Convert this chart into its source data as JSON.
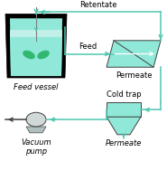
{
  "bg_color": "#ffffff",
  "teal_color": "#70d8c8",
  "teal_line": "#50c8b0",
  "outline_color": "#404040",
  "vessel_fill": "#90e8d8",
  "vessel_top_fill": "#c0f0e8",
  "membrane_fill": "#90e8d8",
  "coldtrap_fill": "#90e8d8",
  "pump_fill": "#d0d8d8",
  "pump_base_fill": "#b0c0c0",
  "labels": {
    "feed_vessel": "Feed vessel",
    "feed": "Feed",
    "retentate": "Retentate",
    "permeate_top": "Permeate",
    "permeate_bottom": "Permeate",
    "cold_trap": "Cold trap",
    "vacuum_pump": "Vacuum\npump"
  },
  "font_size": 6.0,
  "label_color": "#000000",
  "arrow_lw": 1.0,
  "line_lw": 1.1
}
